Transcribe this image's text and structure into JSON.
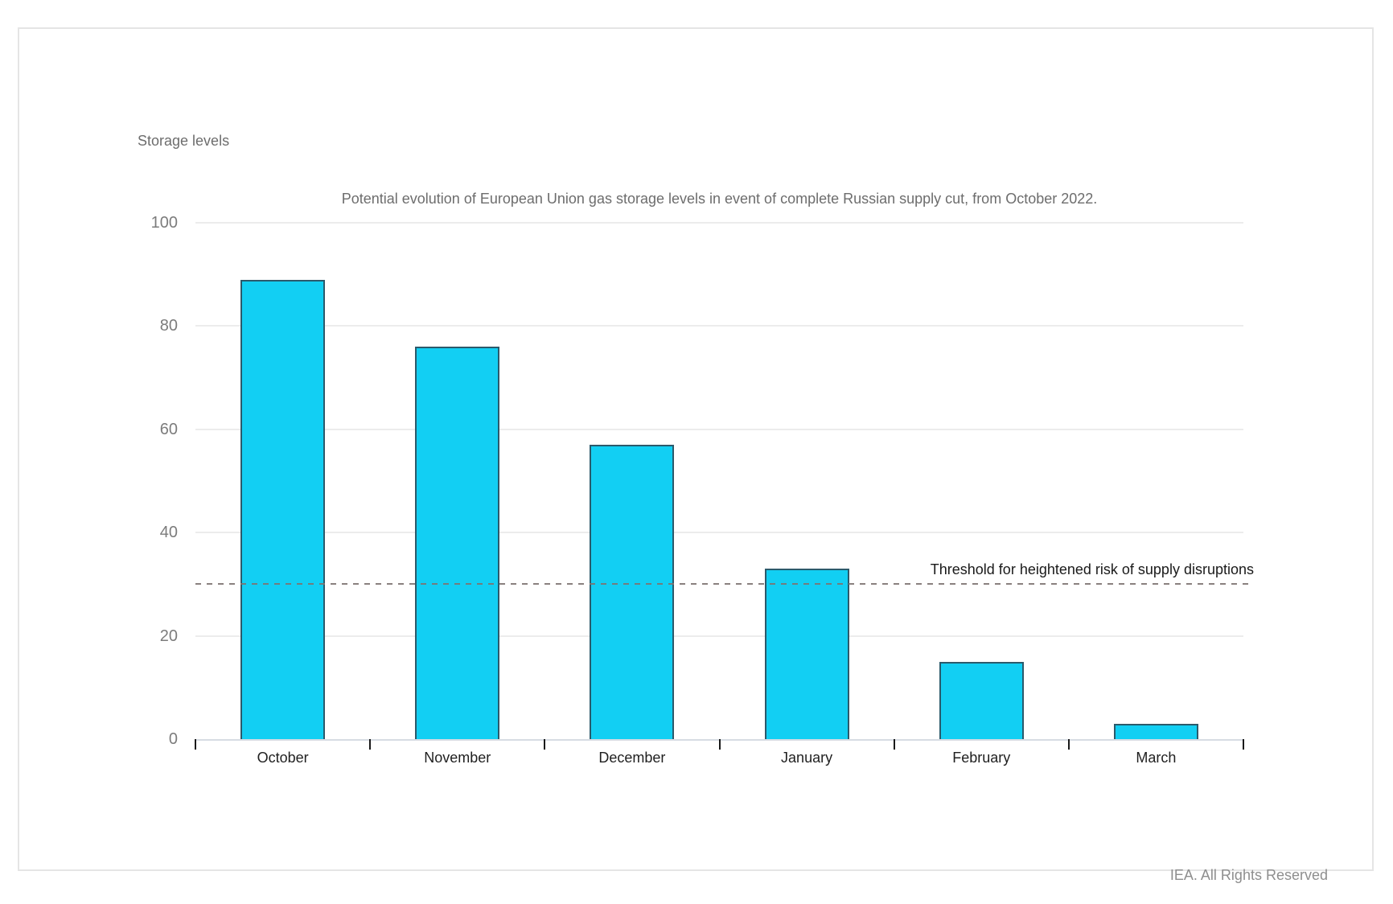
{
  "page": {
    "credit": "IEA. All Rights Reserved"
  },
  "chart_data": {
    "type": "bar",
    "title": "Potential evolution of European Union gas storage levels in event of complete Russian supply cut, from October 2022.",
    "ylabel": "Storage levels",
    "xlabel": "",
    "categories": [
      "October",
      "November",
      "December",
      "January",
      "February",
      "March"
    ],
    "values": [
      89,
      76,
      57,
      33,
      15,
      3
    ],
    "ylim": [
      0,
      100
    ],
    "yticks": [
      0,
      20,
      40,
      60,
      80,
      100
    ],
    "grid": "horizontal",
    "legend": "none",
    "threshold": {
      "value": 30,
      "label": "Threshold for heightened risk of supply disruptions"
    },
    "colors": {
      "bar_fill": "#12cff3",
      "bar_border": "#2b5a6b",
      "gridline": "#ececec",
      "axis_line": "#d7dce3",
      "dashed_line": "#7d7371",
      "tick_mark": "#1a1a1a",
      "title_text": "#6d6d6d",
      "ytick_text": "#7c7c7c",
      "xtick_text": "#1f1f1f",
      "threshold_text": "#1a1a1a",
      "credit_text": "#8e8e8e",
      "card_border": "#e5e5e5"
    }
  }
}
